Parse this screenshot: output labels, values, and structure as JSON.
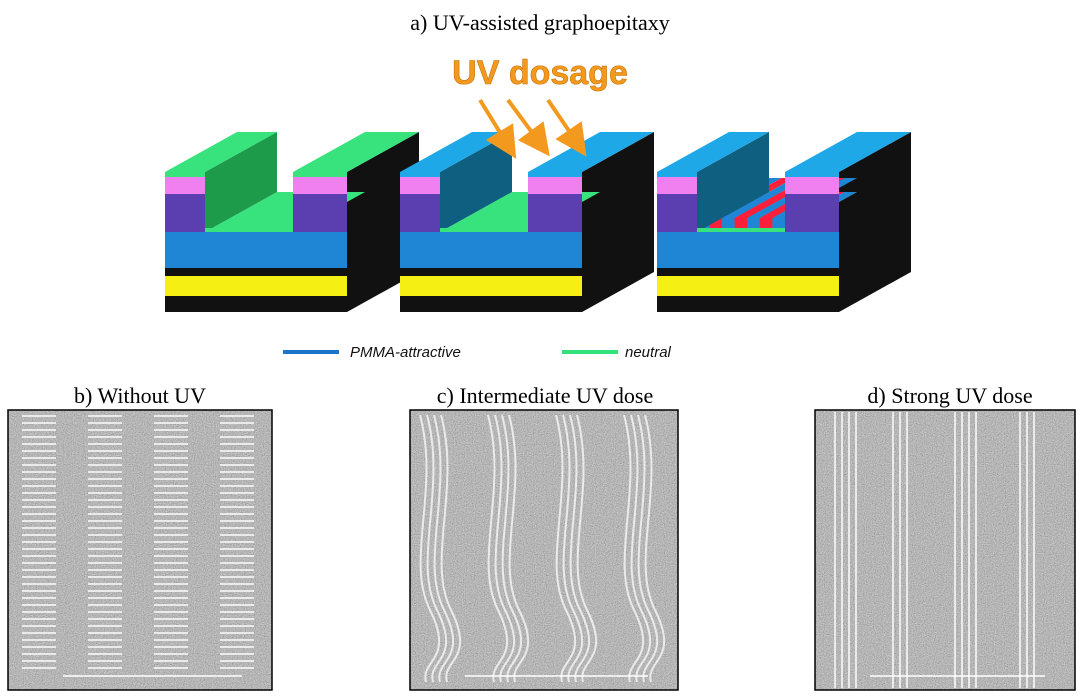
{
  "title": "a) UV-assisted graphoepitaxy",
  "annotation": "UV dosage",
  "legend": [
    {
      "label": "PMMA-attractive",
      "color": "#1a74c9"
    },
    {
      "label": "neutral",
      "color": "#33e27a"
    }
  ],
  "panels": [
    {
      "label": "b) Without UV"
    },
    {
      "label": "c) Intermediate UV dose"
    },
    {
      "label": "d) Strong UV dose"
    }
  ]
}
